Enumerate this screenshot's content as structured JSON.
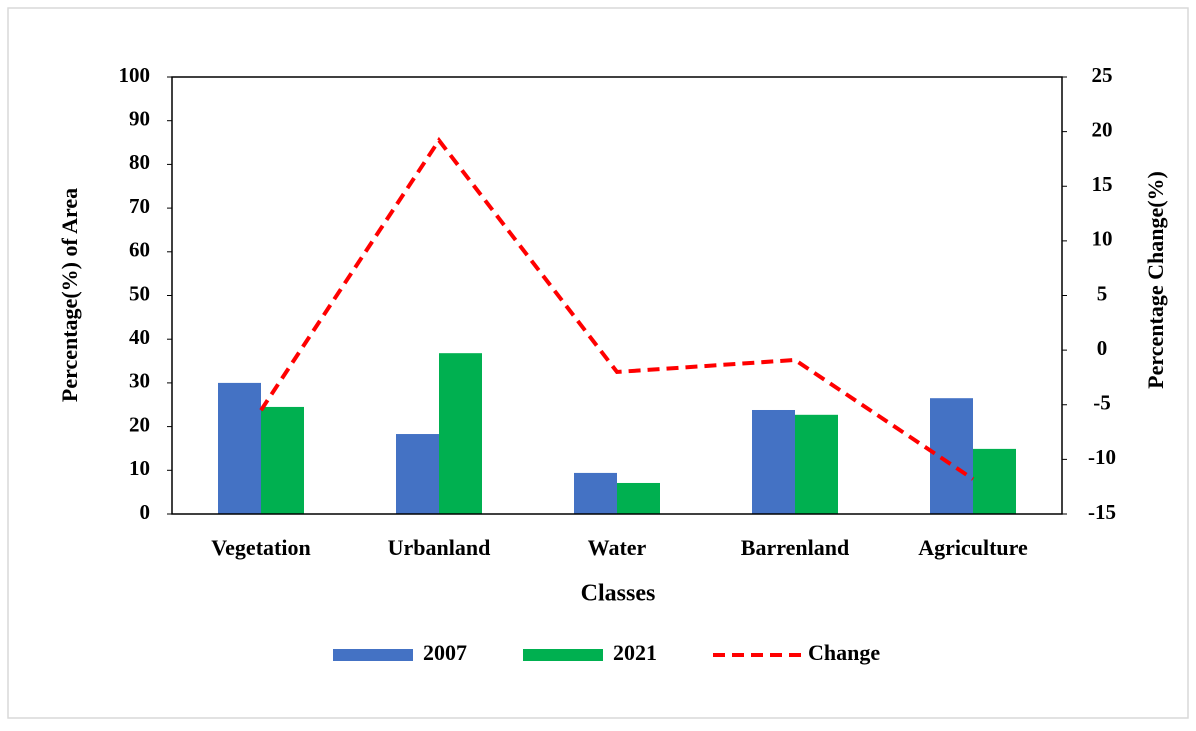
{
  "chart_data": {
    "type": "bar",
    "x_label": "Classes",
    "y_label": "Percentage(%) of Area",
    "y2_label": "Percentage Change(%)",
    "categories": [
      "Vegetation",
      "Urbanland",
      "Water",
      "Barrenland",
      "Agriculture"
    ],
    "series": [
      {
        "name": "2007",
        "color": "#4472c4",
        "values": [
          30.0,
          18.3,
          9.4,
          23.8,
          26.5
        ]
      },
      {
        "name": "2021",
        "color": "#00b050",
        "values": [
          24.5,
          36.8,
          7.1,
          22.7,
          14.9
        ]
      },
      {
        "name": "Change",
        "color": "#ff0000",
        "type": "line",
        "dashed": true,
        "axis": "y2",
        "values": [
          -5.5,
          19.2,
          -2.0,
          -0.9,
          -11.8
        ]
      }
    ],
    "ylim": [
      0,
      100
    ],
    "yticks": [
      0,
      10,
      20,
      30,
      40,
      50,
      60,
      70,
      80,
      90,
      100
    ],
    "y2lim": [
      -15,
      25
    ],
    "y2ticks": [
      -15,
      -10,
      -5,
      0,
      5,
      10,
      15,
      20,
      25
    ],
    "legend": "bottom",
    "grid": false
  }
}
